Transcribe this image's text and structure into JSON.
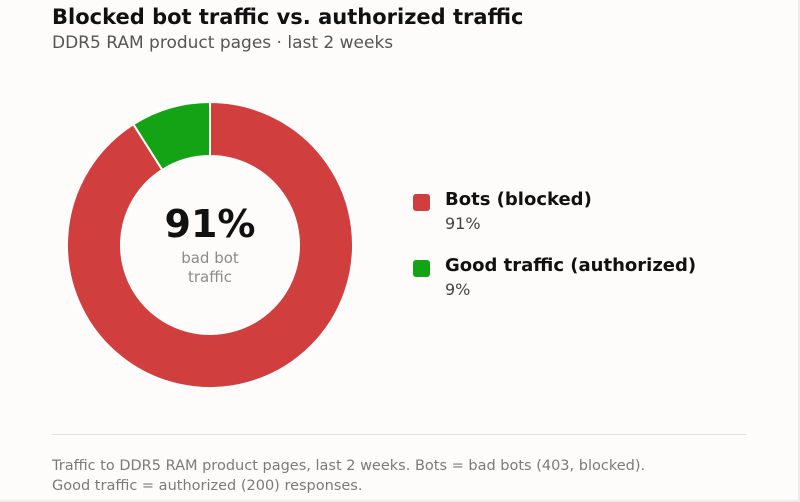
{
  "title": "Blocked bot traffic vs. authorized traffic",
  "subtitle": "DDR5 RAM product pages · last 2 weeks",
  "chart_data": {
    "type": "pie",
    "variant": "donut",
    "categories": [
      "Bots (blocked)",
      "Good traffic (authorized)"
    ],
    "values": [
      91,
      9
    ],
    "colors": [
      "#d13e3e",
      "#14a314"
    ],
    "value_labels": [
      "91%",
      "9%"
    ],
    "center_value": "91%",
    "center_caption_lines": [
      "bad bot",
      "traffic"
    ],
    "legend_position": "right"
  },
  "footnote": {
    "line1": "Traffic to DDR5 RAM product pages, last 2 weeks. Bots = bad bots (403, blocked).",
    "line2": "Good traffic = authorized (200) responses."
  }
}
